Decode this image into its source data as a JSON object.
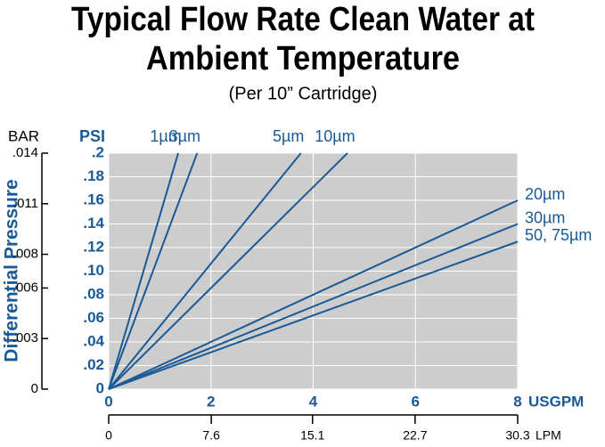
{
  "chart_data": {
    "type": "line",
    "title": [
      "Typical Flow Rate Clean Water at",
      "Ambient Temperature"
    ],
    "subtitle": "(Per 10” Cartridge)",
    "y_label": "Differential Pressure",
    "y_unit": "PSI",
    "y2_unit": "BAR",
    "x_unit": "USGPM",
    "x2_unit": "LPM",
    "xlim": [
      0,
      8
    ],
    "xticks": [
      0,
      2,
      4,
      6,
      8
    ],
    "x2lim": [
      0,
      30.3
    ],
    "x2ticks": [
      0,
      7.6,
      15.1,
      22.7,
      30.3
    ],
    "ylim": [
      0,
      0.2
    ],
    "yticks": [
      0,
      {
        "value": 0.02,
        "label": ".02"
      },
      {
        "value": 0.04,
        "label": ".04"
      },
      {
        "value": 0.06,
        "label": ".06"
      },
      {
        "value": 0.08,
        "label": ".08"
      },
      {
        "value": 0.1,
        "label": ".10"
      },
      {
        "value": 0.12,
        "label": ".12"
      },
      {
        "value": 0.14,
        "label": ".14"
      },
      {
        "value": 0.16,
        "label": ".16"
      },
      {
        "value": 0.18,
        "label": ".18"
      },
      {
        "value": 0.2,
        "label": ".2"
      }
    ],
    "y2lim": [
      0,
      0.014
    ],
    "y2ticks": [
      0,
      {
        "value": 0.003,
        "label": ".003"
      },
      {
        "value": 0.006,
        "label": ".006"
      },
      {
        "value": 0.008,
        "label": ".008"
      },
      {
        "value": 0.011,
        "label": ".011"
      },
      {
        "value": 0.014,
        "label": ".014"
      }
    ],
    "grid": true,
    "series": [
      {
        "name": "1µm",
        "color": "#1a5a96",
        "x": [
          0,
          1.36
        ],
        "values": [
          0,
          0.2
        ]
      },
      {
        "name": "3µm",
        "color": "#1a5a96",
        "x": [
          0,
          1.73
        ],
        "values": [
          0,
          0.2
        ]
      },
      {
        "name": "5µm",
        "color": "#1a5a96",
        "x": [
          0,
          3.76
        ],
        "values": [
          0,
          0.2
        ]
      },
      {
        "name": "10µm",
        "color": "#1a5a96",
        "x": [
          0,
          4.67
        ],
        "values": [
          0,
          0.2
        ]
      },
      {
        "name": "20µm",
        "color": "#1a5a96",
        "x": [
          0,
          8
        ],
        "values": [
          0,
          0.16
        ]
      },
      {
        "name": "30µm",
        "color": "#1a5a96",
        "x": [
          0,
          8
        ],
        "values": [
          0,
          0.14
        ]
      },
      {
        "name": "50, 75µm",
        "color": "#1a5a96",
        "x": [
          0,
          8
        ],
        "values": [
          0,
          0.125
        ]
      }
    ]
  }
}
